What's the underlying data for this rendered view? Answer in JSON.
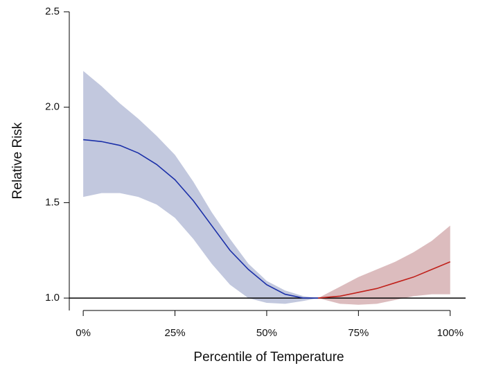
{
  "chart_data": {
    "type": "line_band",
    "x_label": "Percentile of Temperature",
    "y_label": "Relative Risk",
    "xlim": [
      -3.8,
      104.2
    ],
    "ylim": [
      0.935,
      2.5
    ],
    "xticks": [
      {
        "value": 0,
        "label": "0%"
      },
      {
        "value": 25,
        "label": "25%"
      },
      {
        "value": 50,
        "label": "50%"
      },
      {
        "value": 75,
        "label": "75%"
      },
      {
        "value": 100,
        "label": "100%"
      }
    ],
    "yticks": [
      {
        "value": 1.0,
        "label": "1.0"
      },
      1.5,
      {
        "value": 2.0,
        "label": "2.0"
      },
      2.5
    ],
    "reference_line": 1.0,
    "series": [
      {
        "color": "#1a2fa8",
        "band_color": "#c2c8de",
        "x": [
          0,
          5,
          10,
          15,
          20,
          25,
          30,
          35,
          40,
          45,
          50,
          55,
          60,
          64
        ],
        "values": [
          1.83,
          1.82,
          1.8,
          1.76,
          1.7,
          1.62,
          1.51,
          1.38,
          1.25,
          1.15,
          1.07,
          1.02,
          1.0,
          1.0
        ],
        "upper": [
          2.19,
          2.11,
          2.02,
          1.94,
          1.85,
          1.75,
          1.61,
          1.45,
          1.31,
          1.18,
          1.09,
          1.04,
          1.01,
          1.0
        ],
        "lower": [
          1.53,
          1.55,
          1.55,
          1.53,
          1.49,
          1.42,
          1.31,
          1.18,
          1.07,
          1.0,
          0.975,
          0.97,
          0.985,
          1.0
        ]
      },
      {
        "color": "#c0201a",
        "band_color": "#dcbcbe",
        "x": [
          64,
          70,
          75,
          80,
          85,
          90,
          95,
          100
        ],
        "values": [
          1.0,
          1.01,
          1.03,
          1.05,
          1.08,
          1.11,
          1.15,
          1.19
        ],
        "upper": [
          1.0,
          1.06,
          1.11,
          1.15,
          1.19,
          1.24,
          1.3,
          1.38
        ],
        "lower": [
          1.0,
          0.97,
          0.965,
          0.97,
          0.99,
          1.01,
          1.02,
          1.02
        ]
      }
    ]
  }
}
